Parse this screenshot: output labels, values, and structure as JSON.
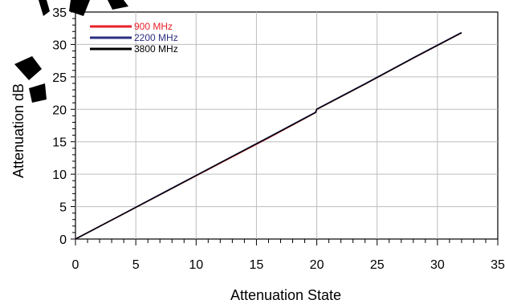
{
  "chart_data": {
    "type": "line",
    "xlabel": "Attenuation  State",
    "ylabel": "Attenuation  dB",
    "xlim": [
      0,
      35
    ],
    "ylim": [
      0,
      35
    ],
    "xticks": [
      0,
      5,
      10,
      15,
      20,
      25,
      30,
      35
    ],
    "yticks": [
      0,
      5,
      10,
      15,
      20,
      25,
      30,
      35
    ],
    "grid": true,
    "legend_position": "top-left",
    "series": [
      {
        "name": "900 MHz",
        "color": "#e8202a",
        "x": [
          0,
          4,
          8,
          12,
          16,
          19.9,
          20,
          24,
          28,
          32
        ],
        "y": [
          0,
          3.9,
          7.8,
          11.7,
          15.6,
          19.5,
          20.0,
          23.9,
          27.9,
          31.8
        ]
      },
      {
        "name": "2200 MHz",
        "color": "#2b2f80",
        "x": [
          0,
          4,
          8,
          12,
          16,
          19.9,
          20,
          24,
          28,
          32
        ],
        "y": [
          0,
          3.92,
          7.85,
          11.78,
          15.7,
          19.55,
          20.05,
          23.95,
          27.95,
          31.85
        ]
      },
      {
        "name": "3800 MHz",
        "color": "#000000",
        "x": [
          0,
          4,
          8,
          12,
          16,
          19.9,
          20,
          24,
          28,
          32
        ],
        "y": [
          0,
          3.9,
          7.8,
          11.75,
          15.65,
          19.5,
          20.0,
          23.9,
          27.9,
          31.8
        ]
      }
    ]
  }
}
